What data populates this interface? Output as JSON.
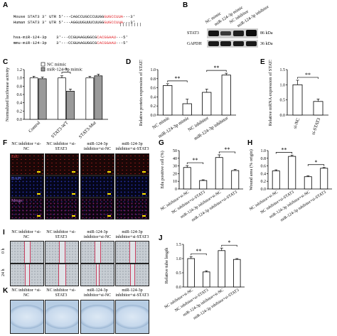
{
  "panels": {
    "A": {
      "label": "A",
      "seq_rows": [
        {
          "name": "Mouse STAT3 3′ UTR",
          "prefix": "5′···CAGCCUGCCCUUGG",
          "red": "GUGCCUUA",
          "suffix": "···3′"
        },
        {
          "name": "Human STAT3 3′ UTR",
          "prefix": "5′···AGGUUGUUUCUUGG",
          "red": "GUGCCUUA",
          "suffix": "···3′"
        },
        {
          "name": "hsa-miR-124-3p",
          "prefix": "3′···CCGUAAGUGGCG",
          "red": "CACGGAAU",
          "suffix": "···5′"
        },
        {
          "name": "mmu-miR-124-3p",
          "prefix": "3′···CCGUAAGUGGCG",
          "red": "CACGGAAU",
          "suffix": "···5′"
        }
      ],
      "pair_bars": "||||||||"
    },
    "B": {
      "label": "B",
      "columns": [
        "NC mimic",
        "miR-124-3p mimic",
        "NC inhibitor",
        "miR-124-3p inhibitor"
      ],
      "blots": [
        {
          "name": "STAT3",
          "size": "86 kDa"
        },
        {
          "name": "GAPDH",
          "size": "36 kDa"
        }
      ]
    },
    "F": {
      "label": "F",
      "columns": [
        "NC inhibitor +si-NC",
        "NC inhibitor +si-STAT3",
        "miR-124-3p inhibitor+si-NC",
        "miR-124-3p inhibitor+si-STAT3"
      ],
      "rows": [
        "EdU",
        "DAPI",
        "Merge"
      ]
    },
    "I": {
      "label": "I",
      "columns": [
        "NC inhibitor +si-NC",
        "NC inhibitor +si-STAT3",
        "miR-124-3p inhibitor+si-NC",
        "miR-124-3p inhibitor+si-STAT3"
      ],
      "rows": [
        "0 h",
        "24 h"
      ]
    },
    "K": {
      "label": "K",
      "columns": [
        "NC inhibitor +si-NC",
        "NC inhibitor +si-STAT3",
        "miR-124-3p inhibitor+si-NC",
        "miR-124-3p inhibitor+si-STAT3"
      ]
    }
  },
  "chart_data": [
    {
      "panel": "C",
      "type": "bar",
      "categories": [
        "Control",
        "STAT3-WT",
        "STAT3-Mut"
      ],
      "series": [
        {
          "name": "NC mimic",
          "values": [
            1.0,
            1.0,
            1.0
          ],
          "errors": [
            0.04,
            0.05,
            0.04
          ],
          "fill": "#ffffff"
        },
        {
          "name": "miR-124-3p mimic",
          "values": [
            0.98,
            0.68,
            1.05
          ],
          "errors": [
            0.04,
            0.05,
            0.04
          ],
          "fill": "#9a9a9a"
        }
      ],
      "ylabel": "Normalized luciferase activity",
      "ylim": [
        0,
        1.2
      ],
      "yticks": [
        "0.0",
        "0.2",
        "0.4",
        "0.6",
        "0.8",
        "1.0",
        "1.2"
      ],
      "sig": [
        {
          "text": "*",
          "group": 1
        }
      ],
      "legend": "top-left"
    },
    {
      "panel": "D",
      "type": "bar",
      "categories": [
        "NC mimic",
        "miR-124-3p mimic",
        "NC inhibitor",
        "miR-124-3p inhibitor"
      ],
      "values": [
        0.65,
        0.25,
        0.5,
        0.88
      ],
      "errors": [
        0.04,
        0.1,
        0.07,
        0.04
      ],
      "ylabel": "Relative protein expression of STAT3",
      "ylim": [
        0,
        1.0
      ],
      "yticks": [
        "0.0",
        "0.2",
        "0.4",
        "0.6",
        "0.8",
        "1.0"
      ],
      "sig": [
        {
          "text": "**",
          "from": 0,
          "to": 1
        },
        {
          "text": "**",
          "from": 2,
          "to": 3
        }
      ]
    },
    {
      "panel": "E",
      "type": "bar",
      "categories": [
        "si-NC",
        "si-STAT3"
      ],
      "values": [
        1.0,
        0.45
      ],
      "errors": [
        0.15,
        0.08
      ],
      "ylabel": "Relative mRNA expression of STAT3",
      "ylim": [
        0,
        1.5
      ],
      "yticks": [
        "0.0",
        "0.5",
        "1.0",
        "1.5"
      ],
      "sig": [
        {
          "text": "**",
          "from": 0,
          "to": 1
        }
      ]
    },
    {
      "panel": "G",
      "type": "bar",
      "categories": [
        "NC inhibitor+si-NC",
        "NC inhibitor+si-STAT3",
        "miR-124-3p inhibitor+si-NC",
        "miR-124-3p inhibitor+si-STAT3"
      ],
      "values": [
        28,
        11,
        41,
        24
      ],
      "errors": [
        2.5,
        1.0,
        3.5,
        1.5
      ],
      "ylabel": "Edu positive cell (%)",
      "ylim": [
        0,
        50
      ],
      "yticks": [
        "0",
        "10",
        "20",
        "30",
        "40",
        "50"
      ],
      "sig": [
        {
          "text": "**",
          "from": 0,
          "to": 1
        },
        {
          "text": "**",
          "from": 2,
          "to": 3
        }
      ]
    },
    {
      "panel": "H",
      "type": "bar",
      "categories": [
        "NC inhibitor+si-NC",
        "NC inhibitor+si-STAT3",
        "miR-124-3p inhibitor+si-NC",
        "miR-124-3p inhibitor+si-STAT3"
      ],
      "values": [
        0.47,
        0.85,
        0.32,
        0.54
      ],
      "errors": [
        0.03,
        0.03,
        0.02,
        0.02
      ],
      "ylabel": "Wound area (% origin)",
      "ylim": [
        0,
        1.0
      ],
      "yticks": [
        "0.0",
        "0.2",
        "0.4",
        "0.6",
        "0.8",
        "1.0"
      ],
      "sig": [
        {
          "text": "**",
          "from": 0,
          "to": 1
        },
        {
          "text": "*",
          "from": 2,
          "to": 3
        }
      ]
    },
    {
      "panel": "J",
      "type": "bar",
      "categories": [
        "NC inhibitor+si-NC",
        "NC inhibitor+si-STAT3",
        "miR-124-3p inhibitor+si-NC",
        "miR-124-3p inhibitor+si-STAT3"
      ],
      "values": [
        1.0,
        0.53,
        1.28,
        0.97
      ],
      "errors": [
        0.07,
        0.04,
        0.09,
        0.03
      ],
      "ylabel": "Relative tube length",
      "ylim": [
        0,
        1.5
      ],
      "yticks": [
        "0.0",
        "0.5",
        "1.0",
        "1.5"
      ],
      "sig": [
        {
          "text": "**",
          "from": 0,
          "to": 1
        },
        {
          "text": "*",
          "from": 2,
          "to": 3
        }
      ]
    }
  ]
}
